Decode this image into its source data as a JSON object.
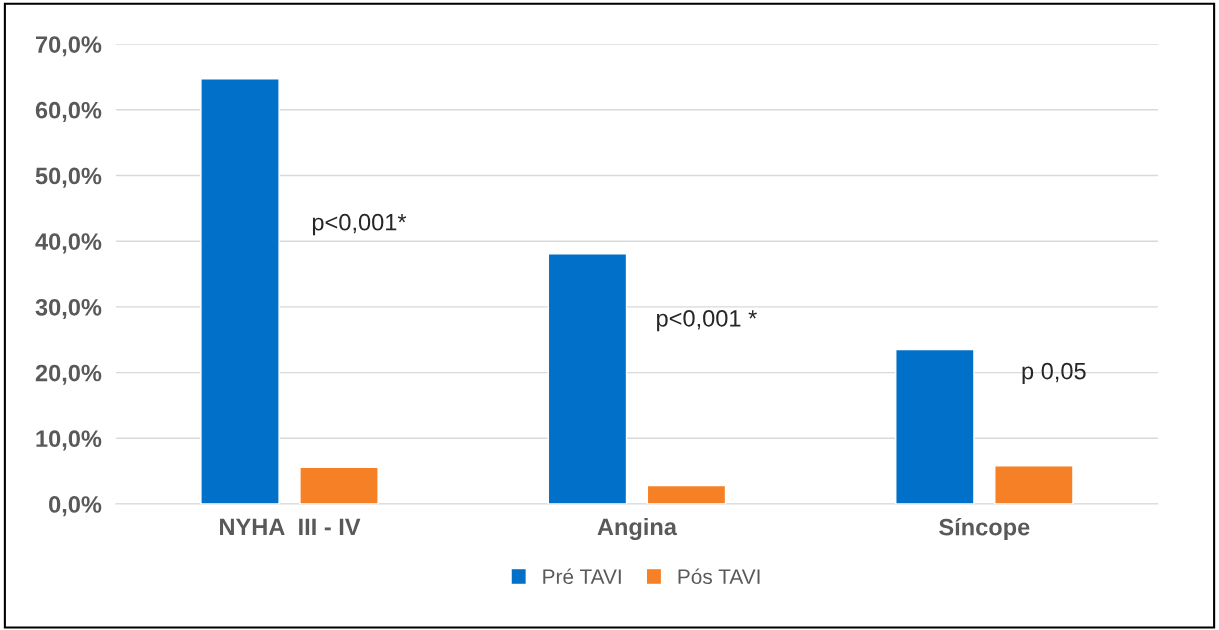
{
  "chart_data": {
    "type": "bar",
    "categories": [
      "NYHA  III - IV",
      "Angina",
      "Síncope"
    ],
    "series": [
      {
        "name": "Pré TAVI",
        "color": "#0070c8",
        "values": [
          64.7,
          38.1,
          23.5
        ]
      },
      {
        "name": "Pós TAVI",
        "color": "#f58025",
        "values": [
          5.6,
          2.8,
          5.8
        ]
      }
    ],
    "ylim": [
      0,
      70
    ],
    "yticks": [
      {
        "value": 0,
        "label": "0,0%"
      },
      {
        "value": 10,
        "label": "10,0%"
      },
      {
        "value": 20,
        "label": "20,0%"
      },
      {
        "value": 30,
        "label": "30,0%"
      },
      {
        "value": 40,
        "label": "40,0%"
      },
      {
        "value": 50,
        "label": "50,0%"
      },
      {
        "value": 60,
        "label": "60,0%"
      },
      {
        "value": 70,
        "label": "70,0%"
      }
    ],
    "annotations": [
      "p<0,001*",
      "p<0,001 *",
      "p 0,05"
    ],
    "grid": "y",
    "legend": "bottom"
  }
}
